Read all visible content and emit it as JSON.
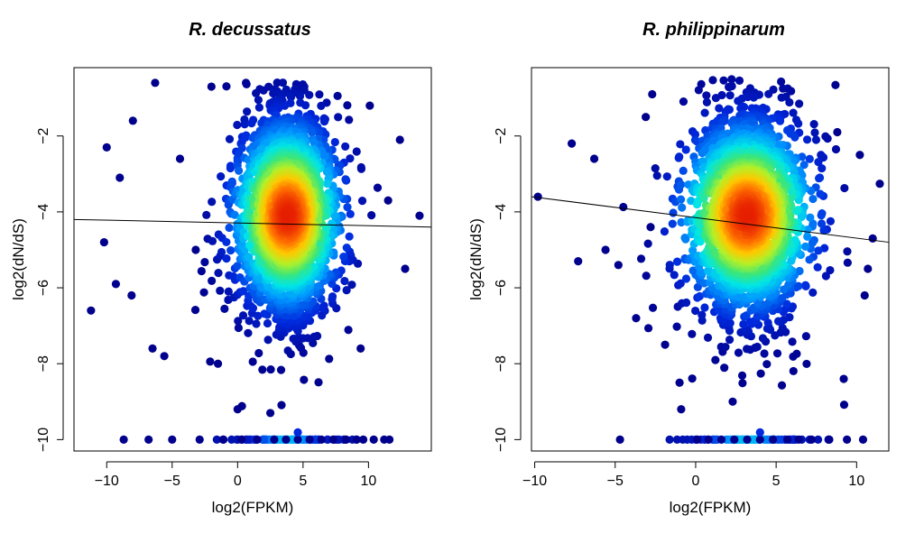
{
  "chart_data": [
    {
      "type": "scatter",
      "title": "R. decussatus",
      "xlabel": "log2(FPKM)",
      "ylabel": "log2(dN/dS)",
      "xlim": [
        -12.5,
        14.8
      ],
      "ylim": [
        -10.3,
        -0.2
      ],
      "xticks": [
        -10,
        -5,
        0,
        5,
        10
      ],
      "yticks": [
        -10,
        -8,
        -6,
        -4,
        -2
      ],
      "xtick_labels": [
        "−10",
        "−5",
        "0",
        "5",
        "10"
      ],
      "ytick_labels": [
        "−10",
        "−8",
        "−6",
        "−4",
        "−2"
      ],
      "coloring": "point density (blue = low, red = high)",
      "density_center": {
        "x": 3.8,
        "y": -4.1
      },
      "regression_line": {
        "x": [
          -12.5,
          14.8
        ],
        "y": [
          -4.2,
          -4.4
        ]
      },
      "floor_value": -10,
      "outliers": [
        {
          "x": -11.2,
          "y": -6.6
        },
        {
          "x": -6.3,
          "y": -0.6
        },
        {
          "x": -2.0,
          "y": -0.7
        },
        {
          "x": -6.5,
          "y": -7.6
        },
        {
          "x": -5.6,
          "y": -7.8
        },
        {
          "x": -10.0,
          "y": -2.3
        },
        {
          "x": -8.0,
          "y": -1.6
        },
        {
          "x": -9.0,
          "y": -3.1
        },
        {
          "x": -10.2,
          "y": -4.8
        },
        {
          "x": -9.3,
          "y": -5.9
        },
        {
          "x": -8.1,
          "y": -6.2
        },
        {
          "x": 13.9,
          "y": -4.1
        },
        {
          "x": 12.8,
          "y": -5.5
        },
        {
          "x": 12.4,
          "y": -2.1
        },
        {
          "x": 10.1,
          "y": -1.2
        },
        {
          "x": 11.5,
          "y": -3.7
        },
        {
          "x": -1.5,
          "y": -8.0
        },
        {
          "x": 0.0,
          "y": -9.2
        },
        {
          "x": 9.4,
          "y": -7.6
        },
        {
          "x": 2.5,
          "y": -9.3
        },
        {
          "x": -4.4,
          "y": -2.6
        },
        {
          "x": -3.2,
          "y": -5.0
        }
      ],
      "floor_points_x": [
        -8.7,
        -6.8,
        -5.0,
        -2.9,
        -1.1,
        0.3,
        1.5,
        2.8,
        3.7,
        4.6,
        5.5,
        6.4,
        7.3,
        8.3,
        9.1,
        9.6,
        10.4,
        11.2,
        11.6
      ]
    },
    {
      "type": "scatter",
      "title": "R. philippinarum",
      "xlabel": "log2(FPKM)",
      "ylabel": "log2(dN/dS)",
      "xlim": [
        -10.2,
        12.0
      ],
      "ylim": [
        -10.3,
        -0.2
      ],
      "xticks": [
        -10,
        -5,
        0,
        5,
        10
      ],
      "yticks": [
        -10,
        -8,
        -6,
        -4,
        -2
      ],
      "xtick_labels": [
        "−10",
        "−5",
        "0",
        "5",
        "10"
      ],
      "ytick_labels": [
        "−10",
        "−8",
        "−6",
        "−4",
        "−2"
      ],
      "coloring": "point density (blue = low, red = high)",
      "density_center": {
        "x": 3.2,
        "y": -4.1
      },
      "regression_line": {
        "x": [
          -10.2,
          12.0
        ],
        "y": [
          -3.6,
          -4.8
        ]
      },
      "floor_value": -10,
      "outliers": [
        {
          "x": -9.8,
          "y": -3.6
        },
        {
          "x": -7.7,
          "y": -2.2
        },
        {
          "x": -6.3,
          "y": -2.6
        },
        {
          "x": -7.3,
          "y": -5.3
        },
        {
          "x": -5.6,
          "y": -5.0
        },
        {
          "x": -4.8,
          "y": -5.4
        },
        {
          "x": -3.7,
          "y": -6.8
        },
        {
          "x": -1.9,
          "y": -7.5
        },
        {
          "x": -1.0,
          "y": -8.5
        },
        {
          "x": -0.9,
          "y": -9.2
        },
        {
          "x": 11.0,
          "y": -4.7
        },
        {
          "x": 10.7,
          "y": -5.5
        },
        {
          "x": 10.5,
          "y": -6.2
        },
        {
          "x": 10.2,
          "y": -2.5
        },
        {
          "x": 8.8,
          "y": -1.9
        },
        {
          "x": -3.1,
          "y": -1.5
        },
        {
          "x": -2.7,
          "y": -0.9
        },
        {
          "x": 9.2,
          "y": -8.4
        },
        {
          "x": 2.3,
          "y": -9.0
        },
        {
          "x": -2.8,
          "y": -4.4
        }
      ],
      "floor_points_x": [
        -4.7,
        0.1,
        0.8,
        1.6,
        2.4,
        3.2,
        4.0,
        4.8,
        5.7,
        6.4,
        7.2,
        8.3,
        9.4,
        10.4
      ]
    }
  ]
}
